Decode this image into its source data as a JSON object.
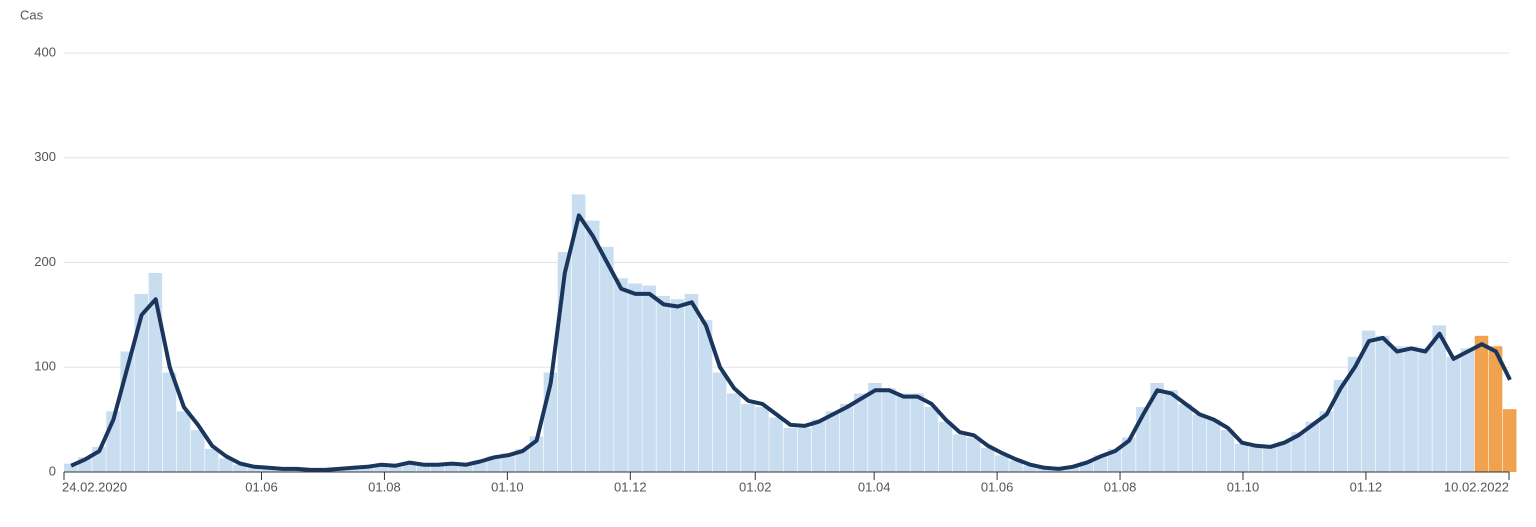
{
  "chart_data": {
    "type": "bar",
    "y_label": "Cas",
    "xlim": [
      0,
      717
    ],
    "xticks": [
      {
        "value": 0,
        "label": "24.02.2020"
      },
      {
        "value": 98,
        "label": "01.06"
      },
      {
        "value": 159,
        "label": "01.08"
      },
      {
        "value": 220,
        "label": "01.10"
      },
      {
        "value": 281,
        "label": "01.12"
      },
      {
        "value": 343,
        "label": "01.02"
      },
      {
        "value": 402,
        "label": "01.04"
      },
      {
        "value": 463,
        "label": "01.06"
      },
      {
        "value": 524,
        "label": "01.08"
      },
      {
        "value": 585,
        "label": "01.10"
      },
      {
        "value": 646,
        "label": "01.12"
      },
      {
        "value": 717,
        "label": "10.02.2022"
      }
    ],
    "ylim": [
      0,
      400
    ],
    "yticks": [
      0,
      100,
      200,
      300,
      400
    ],
    "grid": true,
    "x": [
      0,
      7,
      14,
      21,
      28,
      35,
      42,
      49,
      56,
      63,
      70,
      77,
      84,
      91,
      98,
      105,
      112,
      119,
      126,
      133,
      140,
      147,
      154,
      161,
      168,
      175,
      182,
      189,
      196,
      203,
      210,
      217,
      224,
      231,
      238,
      245,
      252,
      259,
      266,
      273,
      280,
      287,
      294,
      301,
      308,
      315,
      322,
      329,
      336,
      343,
      350,
      357,
      364,
      371,
      378,
      385,
      392,
      399,
      406,
      413,
      420,
      427,
      434,
      441,
      448,
      455,
      462,
      469,
      476,
      483,
      490,
      497,
      504,
      511,
      518,
      525,
      532,
      539,
      546,
      553,
      560,
      567,
      574,
      581,
      588,
      595,
      602,
      609,
      616,
      623,
      630,
      637,
      644,
      651,
      658,
      665,
      672,
      679,
      686,
      693,
      700,
      707,
      714
    ],
    "series": [
      {
        "type": "bar",
        "color": "#c9ddf1",
        "values": [
          8,
          14,
          24,
          58,
          115,
          170,
          190,
          95,
          58,
          40,
          22,
          13,
          7,
          5,
          4,
          3,
          3,
          2,
          2,
          3,
          4,
          5,
          7,
          6,
          9,
          7,
          7,
          8,
          7,
          11,
          15,
          18,
          22,
          34,
          95,
          210,
          265,
          240,
          215,
          185,
          180,
          178,
          168,
          165,
          170,
          145,
          95,
          75,
          65,
          62,
          52,
          42,
          42,
          50,
          58,
          65,
          75,
          85,
          80,
          75,
          75,
          62,
          48,
          36,
          33,
          23,
          16,
          11,
          6,
          4,
          3,
          5,
          10,
          16,
          22,
          33,
          62,
          85,
          78,
          65,
          55,
          50,
          40,
          27,
          24,
          24,
          29,
          38,
          48,
          58,
          88,
          110,
          135,
          130,
          120,
          120,
          118,
          140,
          110,
          118,
          null,
          null,
          null
        ]
      },
      {
        "type": "bar",
        "color": "#f0a24e",
        "x": [
          700,
          707,
          714
        ],
        "values": [
          130,
          120,
          60
        ]
      },
      {
        "type": "line",
        "color": "#1b365d",
        "values": [
          6,
          12,
          20,
          50,
          100,
          150,
          165,
          100,
          62,
          45,
          25,
          15,
          8,
          5,
          4,
          3,
          3,
          2,
          2,
          3,
          4,
          5,
          7,
          6,
          9,
          7,
          7,
          8,
          7,
          10,
          14,
          16,
          20,
          30,
          85,
          190,
          245,
          225,
          200,
          175,
          170,
          170,
          160,
          158,
          162,
          140,
          100,
          80,
          68,
          65,
          55,
          45,
          44,
          48,
          55,
          62,
          70,
          78,
          78,
          72,
          72,
          65,
          50,
          38,
          35,
          25,
          18,
          12,
          7,
          4,
          3,
          5,
          9,
          15,
          20,
          30,
          55,
          78,
          75,
          65,
          55,
          50,
          42,
          28,
          25,
          24,
          28,
          35,
          45,
          55,
          80,
          100,
          125,
          128,
          115,
          118,
          115,
          132,
          108,
          115,
          122,
          115,
          88
        ]
      }
    ]
  }
}
